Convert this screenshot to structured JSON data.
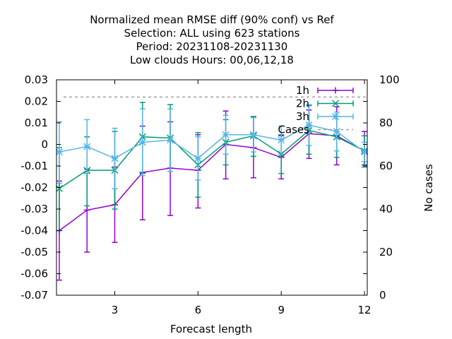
{
  "chart_data": {
    "type": "line",
    "title_lines": [
      "Normalized mean RMSE diff (90% conf) vs Ref",
      "Selection: ALL using   623 stations",
      "Period: 20231108-20231130",
      "Low clouds   Hours:  00,06,12,18"
    ],
    "xlabel": "Forecast length",
    "ylabel_right": "No cases",
    "xlim": [
      0.9,
      12.1
    ],
    "ylim": [
      -0.07,
      0.03
    ],
    "y2lim": [
      0,
      100
    ],
    "x_ticks": [
      3,
      6,
      9,
      12
    ],
    "y_ticks": [
      -0.07,
      -0.06,
      -0.05,
      -0.04,
      -0.03,
      -0.02,
      -0.01,
      0,
      0.01,
      0.02,
      0.03
    ],
    "y_tick_labels": [
      "-0.07",
      "-0.06",
      "-0.05",
      "-0.04",
      "-0.03",
      "-0.02",
      "-0.01",
      "0",
      "0.01",
      "0.02",
      "0.03"
    ],
    "y2_ticks": [
      0,
      20,
      40,
      60,
      80,
      100
    ],
    "y2_tick_labels": [
      "0",
      "20",
      "40",
      "60",
      "80",
      "100"
    ],
    "x": [
      1,
      2,
      3,
      4,
      5,
      6,
      7,
      8,
      9,
      10,
      11,
      12
    ],
    "series": [
      {
        "name": "1h",
        "color": "#9400d3",
        "marker": "plus",
        "values": [
          -0.04,
          -0.0305,
          -0.028,
          -0.013,
          -0.011,
          -0.012,
          0.0,
          -0.0015,
          -0.006,
          0.005,
          0.004,
          -0.003
        ],
        "err_low": [
          -0.063,
          -0.05,
          -0.0455,
          -0.035,
          -0.033,
          -0.0295,
          -0.016,
          -0.0155,
          -0.016,
          -0.0065,
          -0.0095,
          -0.0095
        ],
        "err_high": [
          -0.017,
          -0.0115,
          -0.0105,
          0.0085,
          0.0105,
          0.0045,
          0.0155,
          0.0125,
          0.004,
          0.016,
          0.0175,
          0.006
        ]
      },
      {
        "name": "2h",
        "color": "#009e73",
        "marker": "cross",
        "values": [
          -0.0205,
          -0.012,
          -0.012,
          0.0035,
          0.003,
          -0.0095,
          0.001,
          0.004,
          -0.0045,
          0.0065,
          0.0035,
          -0.003
        ],
        "err_low": [
          -0.04,
          -0.0285,
          -0.03,
          -0.0135,
          -0.0125,
          -0.0245,
          -0.0095,
          -0.0055,
          -0.0135,
          -0.0045,
          -0.006,
          -0.0105
        ],
        "err_high": [
          -0.0015,
          0.0035,
          0.006,
          0.0195,
          0.0185,
          0.0055,
          0.0115,
          0.013,
          0.0045,
          0.018,
          0.013,
          0.004
        ]
      },
      {
        "name": "3h",
        "color": "#56b4e9",
        "marker": "star",
        "values": [
          -0.0035,
          -0.001,
          -0.0065,
          0.001,
          0.002,
          -0.0065,
          0.0045,
          0.0045,
          0.002,
          0.009,
          0.006,
          -0.0035
        ],
        "err_low": [
          -0.018,
          -0.0135,
          -0.0205,
          -0.0145,
          -0.0125,
          -0.0165,
          -0.0045,
          -0.0035,
          -0.0045,
          -0.0005,
          -0.003,
          -0.008
        ],
        "err_high": [
          0.0105,
          0.0115,
          0.0075,
          0.0165,
          0.0165,
          0.0035,
          0.0135,
          0.0125,
          0.0085,
          0.0185,
          0.015,
          0.001
        ]
      }
    ],
    "cases": {
      "name": "Cases",
      "color": "#a0a0a0",
      "values": [
        92,
        92,
        92,
        92,
        92,
        92,
        92,
        92,
        92,
        92,
        92,
        92
      ]
    },
    "legend_position": "top-right",
    "grid": false
  }
}
